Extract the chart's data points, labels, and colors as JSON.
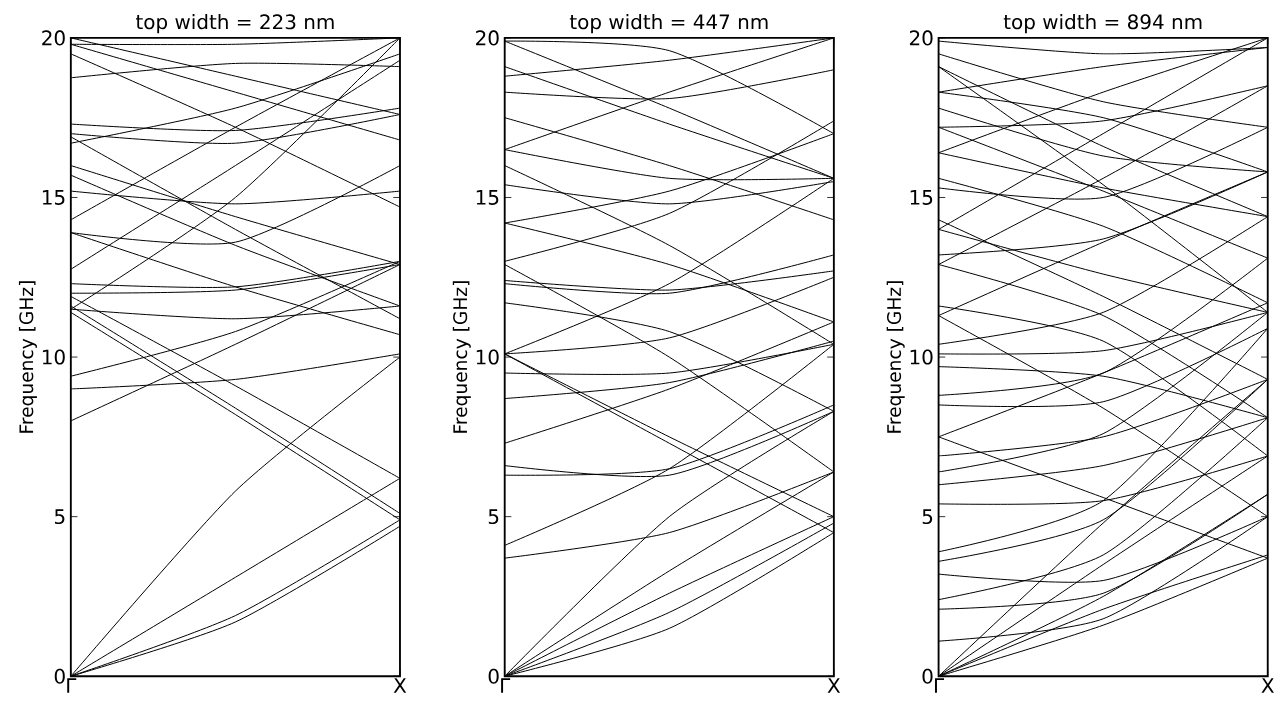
{
  "chart_data": [
    {
      "type": "line",
      "title": "top width = 223 nm",
      "ylabel": "Frequency [GHz]",
      "categories": [
        "Γ",
        null,
        "X"
      ],
      "ylim": [
        0,
        20
      ],
      "yticks": [
        0,
        5,
        10,
        15,
        20
      ],
      "color": "#000000",
      "series": [
        {
          "values": [
            0,
            1.7,
            4.7
          ]
        },
        {
          "values": [
            0,
            1.9,
            4.9
          ]
        },
        {
          "values": [
            0,
            3.1,
            6.2
          ]
        },
        {
          "values": [
            0,
            5.8,
            10.0
          ]
        },
        {
          "values": [
            8.0,
            10.4,
            12.9
          ]
        },
        {
          "values": [
            9.0,
            9.3,
            10.1
          ]
        },
        {
          "values": [
            9.4,
            10.8,
            13.0
          ]
        },
        {
          "values": [
            11.4,
            8.2,
            4.9
          ]
        },
        {
          "values": [
            11.6,
            8.4,
            5.1
          ]
        },
        {
          "values": [
            11.5,
            11.2,
            11.6
          ]
        },
        {
          "values": [
            11.9,
            9.1,
            6.2
          ]
        },
        {
          "values": [
            12.3,
            12.2,
            13.0
          ]
        },
        {
          "values": [
            12.0,
            12.1,
            12.9
          ]
        },
        {
          "values": [
            12.75,
            16.0,
            19.3
          ]
        },
        {
          "values": [
            13.9,
            12.2,
            10.7
          ]
        },
        {
          "values": [
            13.9,
            13.6,
            16.0
          ]
        },
        {
          "values": [
            15.2,
            14.8,
            15.2
          ]
        },
        {
          "values": [
            15.7,
            13.5,
            11.6
          ]
        },
        {
          "values": [
            16.0,
            14.4,
            12.9
          ]
        },
        {
          "values": [
            16.7,
            17.8,
            19.5
          ]
        },
        {
          "values": [
            16.9,
            14.0,
            11.2
          ]
        },
        {
          "values": [
            17.3,
            17.1,
            17.8
          ]
        },
        {
          "values": [
            17.0,
            16.7,
            17.6
          ]
        },
        {
          "values": [
            18.75,
            19.2,
            19.1
          ]
        },
        {
          "values": [
            19.5,
            17.2,
            14.7
          ]
        },
        {
          "values": [
            19.8,
            18.3,
            16.8
          ]
        },
        {
          "values": [
            19.8,
            19.8,
            20.0
          ]
        },
        {
          "values": [
            11.5,
            15.0,
            20.0
          ]
        },
        {
          "values": [
            14.3,
            17.2,
            20.0
          ]
        },
        {
          "values": [
            20.0,
            18.8,
            17.6
          ]
        }
      ]
    },
    {
      "type": "line",
      "title": "top width = 447 nm",
      "ylabel": "Frequency [GHz]",
      "categories": [
        "Γ",
        null,
        "X"
      ],
      "ylim": [
        0,
        20
      ],
      "yticks": [
        0,
        5,
        10,
        15,
        20
      ],
      "color": "#000000",
      "series": [
        {
          "values": [
            0,
            1.5,
            4.5
          ]
        },
        {
          "values": [
            0,
            2.0,
            4.8
          ]
        },
        {
          "values": [
            0,
            2.6,
            5.0
          ]
        },
        {
          "values": [
            0,
            5.0,
            8.3
          ]
        },
        {
          "values": [
            0,
            3.3,
            6.4
          ]
        },
        {
          "values": [
            3.7,
            4.5,
            6.4
          ]
        },
        {
          "values": [
            4.1,
            6.5,
            10.4
          ]
        },
        {
          "values": [
            6.3,
            6.5,
            8.5
          ]
        },
        {
          "values": [
            6.6,
            6.3,
            8.3
          ]
        },
        {
          "values": [
            7.3,
            9.0,
            11.1
          ]
        },
        {
          "values": [
            8.7,
            9.2,
            10.5
          ]
        },
        {
          "values": [
            9.5,
            9.5,
            10.4
          ]
        },
        {
          "values": [
            10.1,
            7.3,
            4.5
          ]
        },
        {
          "values": [
            10.1,
            7.5,
            5.0
          ]
        },
        {
          "values": [
            10.1,
            12.3,
            15.6
          ]
        },
        {
          "values": [
            10.1,
            10.6,
            12.5
          ]
        },
        {
          "values": [
            11.7,
            10.8,
            8.3
          ]
        },
        {
          "values": [
            12.3,
            12.0,
            13.2
          ]
        },
        {
          "values": [
            12.4,
            12.1,
            12.7
          ]
        },
        {
          "values": [
            12.9,
            10.0,
            6.4
          ]
        },
        {
          "values": [
            14.2,
            12.9,
            11.1
          ]
        },
        {
          "values": [
            14.2,
            15.2,
            17.0
          ]
        },
        {
          "values": [
            15.4,
            14.8,
            15.5
          ]
        },
        {
          "values": [
            16.0,
            13.5,
            10.4
          ]
        },
        {
          "values": [
            16.5,
            15.6,
            15.6
          ]
        },
        {
          "values": [
            16.5,
            18.3,
            20.0
          ]
        },
        {
          "values": [
            18.3,
            18.1,
            19.0
          ]
        },
        {
          "values": [
            19.1,
            17.3,
            15.6
          ]
        },
        {
          "values": [
            19.9,
            17.8,
            15.6
          ]
        },
        {
          "values": [
            19.9,
            19.6,
            17.0
          ]
        },
        {
          "values": [
            18.8,
            19.3,
            20.0
          ]
        },
        {
          "values": [
            13.0,
            14.5,
            17.4
          ]
        },
        {
          "values": [
            17.5,
            16.0,
            14.3
          ]
        }
      ]
    },
    {
      "type": "line",
      "title": "top width = 894 nm",
      "ylabel": "Frequency [GHz]",
      "categories": [
        "Γ",
        null,
        "X"
      ],
      "ylim": [
        0,
        20
      ],
      "yticks": [
        0,
        5,
        10,
        15,
        20
      ],
      "color": "#000000",
      "series": [
        {
          "values": [
            0,
            1.6,
            3.7
          ]
        },
        {
          "values": [
            0,
            2.1,
            3.8
          ]
        },
        {
          "values": [
            0,
            3.5,
            6.9
          ]
        },
        {
          "values": [
            0,
            4.8,
            9.3
          ]
        },
        {
          "values": [
            0,
            2.5,
            5.7
          ]
        },
        {
          "values": [
            1.1,
            1.8,
            5.0
          ]
        },
        {
          "values": [
            2.1,
            2.6,
            5.7
          ]
        },
        {
          "values": [
            2.4,
            3.8,
            8.1
          ]
        },
        {
          "values": [
            3.2,
            3.0,
            5.0
          ]
        },
        {
          "values": [
            3.6,
            4.9,
            9.3
          ]
        },
        {
          "values": [
            3.9,
            5.5,
            10.9
          ]
        },
        {
          "values": [
            5.4,
            5.5,
            6.9
          ]
        },
        {
          "values": [
            6.0,
            6.6,
            8.1
          ]
        },
        {
          "values": [
            6.4,
            7.6,
            11.4
          ]
        },
        {
          "values": [
            6.9,
            7.5,
            9.3
          ]
        },
        {
          "values": [
            7.5,
            5.6,
            3.7
          ]
        },
        {
          "values": [
            7.5,
            9.5,
            11.7
          ]
        },
        {
          "values": [
            8.5,
            8.6,
            10.9
          ]
        },
        {
          "values": [
            8.8,
            9.5,
            13.1
          ]
        },
        {
          "values": [
            9.7,
            9.4,
            8.1
          ]
        },
        {
          "values": [
            10.1,
            10.2,
            11.4
          ]
        },
        {
          "values": [
            10.4,
            11.4,
            14.4
          ]
        },
        {
          "values": [
            11.3,
            8.4,
            5.0
          ]
        },
        {
          "values": [
            11.3,
            13.6,
            15.8
          ]
        },
        {
          "values": [
            11.6,
            10.5,
            6.9
          ]
        },
        {
          "values": [
            12.9,
            11.3,
            8.1
          ]
        },
        {
          "values": [
            13.2,
            13.7,
            15.8
          ]
        },
        {
          "values": [
            14.0,
            12.6,
            11.4
          ]
        },
        {
          "values": [
            14.3,
            11.9,
            9.3
          ]
        },
        {
          "values": [
            15.3,
            15.0,
            17.2
          ]
        },
        {
          "values": [
            15.6,
            14.1,
            11.7
          ]
        },
        {
          "values": [
            16.4,
            15.3,
            14.4
          ]
        },
        {
          "values": [
            17.2,
            17.4,
            18.5
          ]
        },
        {
          "values": [
            17.2,
            15.2,
            13.1
          ]
        },
        {
          "values": [
            18.3,
            17.5,
            15.8
          ]
        },
        {
          "values": [
            19.1,
            16.6,
            14.4
          ]
        },
        {
          "values": [
            19.5,
            18.0,
            17.2
          ]
        },
        {
          "values": [
            19.9,
            19.5,
            19.7
          ]
        },
        {
          "values": [
            14.0,
            17.0,
            20.0
          ]
        },
        {
          "values": [
            16.4,
            18.3,
            20.0
          ]
        },
        {
          "values": [
            12.9,
            15.6,
            18.5
          ]
        },
        {
          "values": [
            18.3,
            19.1,
            19.7
          ]
        },
        {
          "values": [
            19.1,
            15.4,
            11.4
          ]
        },
        {
          "values": [
            17.8,
            16.3,
            15.8
          ]
        }
      ]
    }
  ]
}
